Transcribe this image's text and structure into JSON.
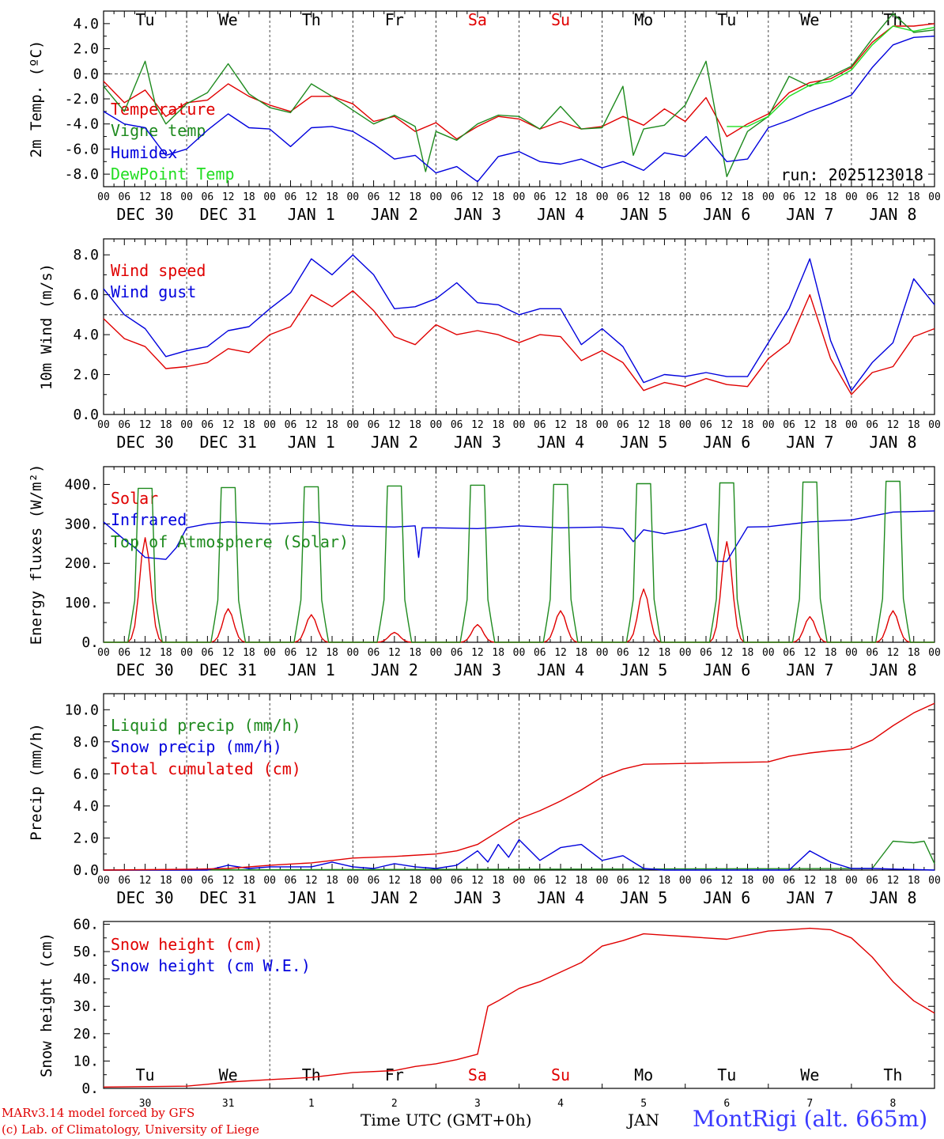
{
  "chart_data": [
    {
      "type": "line",
      "ylabel": "2m Temp. (ºC)",
      "ylim": [
        -9,
        5
      ],
      "yticks": [
        "-8.0",
        "-6.0",
        "-4.0",
        "-2.0",
        "0.0",
        "2.0",
        "4.0"
      ],
      "ytick_values": [
        -8,
        -6,
        -4,
        -2,
        0,
        2,
        4
      ],
      "reference_line": 0,
      "weekdays": [
        "Tu",
        "We",
        "Th",
        "Fr",
        "Sa",
        "Su",
        "Mo",
        "Tu",
        "We",
        "Th"
      ],
      "run_label": "run: 2025123018",
      "series": [
        {
          "name": "Temperature",
          "color": "#e00000",
          "x": [
            0,
            6,
            12,
            18,
            24,
            30,
            36,
            42,
            48,
            54,
            60,
            66,
            72,
            78,
            84,
            90,
            96,
            102,
            108,
            114,
            120,
            126,
            132,
            138,
            144,
            150,
            156,
            162,
            168,
            174,
            180,
            186,
            192,
            198,
            204,
            210,
            216,
            222,
            228,
            234,
            240
          ],
          "values": [
            -0.6,
            -2.3,
            -1.3,
            -3.4,
            -2.3,
            -2.1,
            -0.8,
            -1.8,
            -2.5,
            -3.0,
            -1.8,
            -1.8,
            -2.4,
            -3.8,
            -3.4,
            -4.6,
            -3.9,
            -5.2,
            -4.2,
            -3.4,
            -3.6,
            -4.4,
            -3.8,
            -4.4,
            -4.2,
            -3.4,
            -4.1,
            -2.8,
            -3.8,
            -1.9,
            -5.0,
            -4.0,
            -3.2,
            -1.5,
            -0.7,
            -0.4,
            0.5,
            2.5,
            3.8,
            3.8,
            4.0
          ]
        },
        {
          "name": "Vigne temp",
          "color": "#1e8a1e",
          "x": [
            0,
            6,
            9,
            12,
            15,
            18,
            24,
            30,
            36,
            42,
            48,
            54,
            60,
            66,
            72,
            78,
            84,
            90,
            93,
            96,
            102,
            108,
            114,
            120,
            126,
            132,
            138,
            144,
            150,
            153,
            156,
            162,
            168,
            174,
            177,
            180,
            186,
            192,
            198,
            204,
            210,
            216,
            222,
            228,
            234,
            240
          ],
          "values": [
            -1.0,
            -3.0,
            -1.0,
            1.0,
            -2.5,
            -4.0,
            -2.4,
            -1.5,
            0.8,
            -1.6,
            -2.7,
            -3.1,
            -0.8,
            -1.8,
            -2.9,
            -4.0,
            -3.3,
            -4.2,
            -7.8,
            -4.6,
            -5.3,
            -4.0,
            -3.3,
            -3.4,
            -4.4,
            -2.6,
            -4.4,
            -4.3,
            -1.0,
            -6.5,
            -4.4,
            -4.1,
            -2.5,
            1.0,
            -3.5,
            -8.2,
            -4.6,
            -3.4,
            -0.2,
            -1.0,
            -0.2,
            0.6,
            2.8,
            4.8,
            3.3,
            3.5
          ]
        },
        {
          "name": "Humidex",
          "color": "#0000dd",
          "x": [
            0,
            6,
            12,
            18,
            24,
            30,
            36,
            42,
            48,
            54,
            60,
            66,
            72,
            78,
            84,
            90,
            96,
            102,
            108,
            114,
            120,
            126,
            132,
            138,
            144,
            150,
            156,
            162,
            168,
            174,
            180,
            186,
            192,
            198,
            204,
            210,
            216,
            222,
            228,
            234,
            240
          ],
          "values": [
            -3.0,
            -4.0,
            -4.3,
            -6.5,
            -6.0,
            -4.5,
            -3.2,
            -4.3,
            -4.4,
            -5.8,
            -4.3,
            -4.2,
            -4.6,
            -5.6,
            -6.8,
            -6.5,
            -7.9,
            -7.4,
            -8.6,
            -6.6,
            -6.2,
            -7.0,
            -7.2,
            -6.8,
            -7.5,
            -7.0,
            -7.7,
            -6.3,
            -6.6,
            -5.0,
            -7.0,
            -6.8,
            -4.3,
            -3.7,
            -3.0,
            -2.4,
            -1.7,
            0.5,
            2.3,
            2.9,
            3.0
          ]
        },
        {
          "name": "DewPoint Temp",
          "color": "#22dd22",
          "x": [
            180,
            186,
            192,
            198,
            204,
            210,
            216,
            222,
            228,
            234,
            240
          ],
          "values": [
            -4.2,
            -4.2,
            -3.4,
            -1.8,
            -0.9,
            -0.6,
            0.3,
            2.3,
            3.8,
            3.4,
            3.7
          ]
        }
      ]
    },
    {
      "type": "line",
      "ylabel": "10m Wind (m/s)",
      "ylim": [
        0,
        8.8
      ],
      "yticks": [
        "0.0",
        "2.0",
        "4.0",
        "6.0",
        "8.0"
      ],
      "ytick_values": [
        0,
        2,
        4,
        6,
        8
      ],
      "reference_line": 5,
      "series": [
        {
          "name": "Wind speed",
          "color": "#e00000",
          "x": [
            0,
            6,
            12,
            18,
            24,
            30,
            36,
            42,
            48,
            54,
            60,
            66,
            72,
            78,
            84,
            90,
            96,
            102,
            108,
            114,
            120,
            126,
            132,
            138,
            144,
            150,
            156,
            162,
            168,
            174,
            180,
            186,
            192,
            198,
            204,
            210,
            216,
            222,
            228,
            234,
            240
          ],
          "values": [
            4.8,
            3.8,
            3.4,
            2.3,
            2.4,
            2.6,
            3.3,
            3.1,
            4.0,
            4.4,
            6.0,
            5.4,
            6.2,
            5.2,
            3.9,
            3.5,
            4.5,
            4.0,
            4.2,
            4.0,
            3.6,
            4.0,
            3.9,
            2.7,
            3.2,
            2.6,
            1.2,
            1.6,
            1.4,
            1.8,
            1.5,
            1.4,
            2.8,
            3.6,
            6.0,
            2.8,
            1.0,
            2.1,
            2.4,
            3.9,
            4.3
          ]
        },
        {
          "name": "Wind gust",
          "color": "#0000dd",
          "x": [
            0,
            6,
            12,
            18,
            24,
            30,
            36,
            42,
            48,
            54,
            60,
            66,
            72,
            78,
            84,
            90,
            96,
            102,
            108,
            114,
            120,
            126,
            132,
            138,
            144,
            150,
            156,
            162,
            168,
            174,
            180,
            186,
            192,
            198,
            204,
            210,
            216,
            222,
            228,
            234,
            240
          ],
          "values": [
            6.3,
            5.0,
            4.3,
            2.9,
            3.2,
            3.4,
            4.2,
            4.4,
            5.3,
            6.1,
            7.8,
            7.0,
            8.0,
            7.0,
            5.3,
            5.4,
            5.8,
            6.6,
            5.6,
            5.5,
            5.0,
            5.3,
            5.3,
            3.5,
            4.3,
            3.4,
            1.6,
            2.0,
            1.9,
            2.1,
            1.9,
            1.9,
            3.6,
            5.3,
            7.8,
            3.7,
            1.2,
            2.6,
            3.6,
            6.8,
            5.5
          ]
        }
      ]
    },
    {
      "type": "line",
      "ylabel": "Energy fluxes (W/m²)",
      "ylim": [
        0,
        445
      ],
      "yticks": [
        "0.",
        "100.",
        "200.",
        "300.",
        "400."
      ],
      "ytick_values": [
        0,
        100,
        200,
        300,
        400
      ],
      "daily_solar_peaks": [
        265,
        85,
        70,
        25,
        45,
        80,
        135,
        255,
        65,
        80
      ],
      "daily_toa_peaks": [
        390,
        392,
        394,
        396,
        398,
        400,
        402,
        404,
        406,
        408
      ],
      "series": [
        {
          "name": "Solar",
          "color": "#e00000",
          "note": "daily bell between 07 and 17 UTC"
        },
        {
          "name": "Infrared",
          "color": "#0000dd",
          "x": [
            0,
            6,
            9,
            12,
            18,
            21,
            24,
            30,
            36,
            48,
            60,
            72,
            84,
            90,
            91,
            92,
            96,
            108,
            120,
            132,
            144,
            150,
            153,
            156,
            162,
            168,
            174,
            177,
            180,
            186,
            192,
            204,
            216,
            228,
            240
          ],
          "values": [
            305,
            260,
            240,
            215,
            210,
            240,
            290,
            300,
            305,
            300,
            305,
            295,
            292,
            295,
            215,
            290,
            290,
            288,
            295,
            290,
            292,
            288,
            255,
            285,
            275,
            285,
            300,
            205,
            205,
            292,
            293,
            305,
            310,
            330,
            333
          ]
        },
        {
          "name": "Top of Atmosphere (Solar)",
          "color": "#1e8a1e",
          "note": "daily plateau between 07 and 17 UTC"
        }
      ]
    },
    {
      "type": "line",
      "ylabel": "Precip (mm/h)",
      "ylim": [
        0,
        11
      ],
      "yticks": [
        "0.0",
        "2.0",
        "4.0",
        "6.0",
        "8.0",
        "10.0"
      ],
      "ytick_values": [
        0,
        2,
        4,
        6,
        8,
        10
      ],
      "series": [
        {
          "name": "Liquid precip (mm/h)",
          "color": "#1e8a1e",
          "x": [
            0,
            222,
            228,
            234,
            237,
            240
          ],
          "values": [
            0,
            0.1,
            1.8,
            1.7,
            1.8,
            0.4
          ]
        },
        {
          "name": "Snow precip (mm/h)",
          "color": "#0000dd",
          "x": [
            0,
            30,
            36,
            42,
            48,
            60,
            66,
            72,
            78,
            84,
            90,
            96,
            102,
            108,
            111,
            114,
            117,
            120,
            126,
            132,
            138,
            144,
            150,
            156,
            162,
            168,
            198,
            204,
            210,
            216,
            222,
            240
          ],
          "values": [
            0,
            0,
            0.3,
            0.1,
            0.2,
            0.2,
            0.5,
            0.2,
            0.1,
            0.4,
            0.2,
            0.1,
            0.3,
            1.2,
            0.5,
            1.6,
            0.8,
            1.9,
            0.6,
            1.4,
            1.6,
            0.6,
            0.9,
            0.1,
            0,
            0,
            0,
            1.2,
            0.5,
            0.1,
            0.1,
            0
          ]
        },
        {
          "name": "Total cumulated (cm)",
          "color": "#e00000",
          "x": [
            0,
            24,
            36,
            48,
            60,
            72,
            84,
            96,
            102,
            108,
            114,
            120,
            126,
            132,
            138,
            144,
            150,
            156,
            168,
            180,
            192,
            198,
            204,
            210,
            216,
            222,
            228,
            234,
            240
          ],
          "values": [
            0,
            0.05,
            0.1,
            0.3,
            0.45,
            0.75,
            0.85,
            1.0,
            1.2,
            1.6,
            2.4,
            3.2,
            3.7,
            4.3,
            5.0,
            5.8,
            6.3,
            6.6,
            6.65,
            6.7,
            6.75,
            7.1,
            7.3,
            7.45,
            7.55,
            8.1,
            9.0,
            9.8,
            10.4
          ]
        }
      ]
    },
    {
      "type": "line",
      "ylabel": "Snow height (cm)",
      "ylim": [
        0,
        61
      ],
      "yticks": [
        "0.",
        "10.",
        "20.",
        "30.",
        "40.",
        "50.",
        "60."
      ],
      "ytick_values": [
        0,
        10,
        20,
        30,
        40,
        50,
        60
      ],
      "weekdays": [
        "Tu",
        "We",
        "Th",
        "Fr",
        "Sa",
        "Su",
        "Mo",
        "Tu",
        "We",
        "Th"
      ],
      "month_days": [
        "30",
        "31",
        "1",
        "2",
        "3",
        "4",
        "5",
        "6",
        "7",
        "8"
      ],
      "series": [
        {
          "name": "Snow height (cm)",
          "color": "#e00000",
          "x": [
            0,
            24,
            30,
            36,
            48,
            60,
            72,
            84,
            90,
            96,
            102,
            108,
            111,
            114,
            120,
            126,
            132,
            138,
            144,
            150,
            156,
            162,
            168,
            174,
            180,
            192,
            198,
            204,
            210,
            216,
            222,
            228,
            234,
            240
          ],
          "values": [
            0.5,
            0.8,
            1.5,
            2.3,
            3.2,
            4.0,
            5.8,
            6.5,
            8.0,
            9.0,
            10.5,
            12.5,
            30.0,
            32.0,
            36.5,
            39.0,
            42.5,
            46.0,
            52.0,
            54.0,
            56.5,
            56.0,
            55.5,
            55.0,
            54.5,
            57.5,
            58.0,
            58.5,
            58.0,
            55.0,
            48.0,
            39.0,
            32.0,
            27.5
          ]
        },
        {
          "name": "Snow height (cm W.E.)",
          "color": "#0000dd",
          "x": [],
          "values": []
        }
      ]
    }
  ],
  "date_labels": [
    "DEC 30",
    "DEC 31",
    "JAN  1",
    "JAN  2",
    "JAN  3",
    "JAN  4",
    "JAN  5",
    "JAN  6",
    "JAN  7",
    "JAN  8"
  ],
  "hour_labels": [
    "00",
    "06",
    "12",
    "18"
  ],
  "weekend_color": "#e00000",
  "footer": {
    "model": "MARv3.14 model forced by GFS",
    "credit": "(c) Lab. of Climatology, University of Liege",
    "xtitle": "Time UTC (GMT+0h)",
    "month": "JAN",
    "station": "MontRigi (alt. 665m)"
  }
}
